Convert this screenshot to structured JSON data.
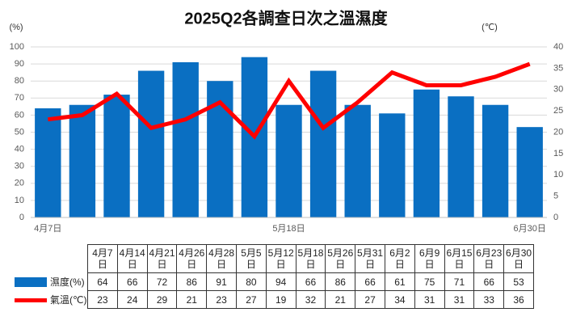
{
  "chart_data": {
    "type": "combo",
    "title": "2025Q2各調查日次之溫濕度",
    "y_label": "(%)",
    "y2_label": "(℃)",
    "categories": [
      "4月7日",
      "4月14日",
      "4月21日",
      "4月26日",
      "4月28日",
      "5月5日",
      "5月12日",
      "5月18日",
      "5月26日",
      "5月31日",
      "6月2日",
      "6月9日",
      "6月15日",
      "6月23日",
      "6月30日"
    ],
    "xticklabels": [
      "4月7日",
      null,
      null,
      null,
      null,
      null,
      null,
      "5月18日",
      null,
      null,
      null,
      null,
      null,
      null,
      "6月30日"
    ],
    "series": [
      {
        "name": "濕度(%)",
        "type": "bar",
        "color": "#0a6fc2",
        "values": [
          64,
          66,
          72,
          86,
          91,
          80,
          94,
          66,
          86,
          66,
          61,
          75,
          71,
          66,
          53
        ]
      },
      {
        "name": "氣溫(℃)",
        "type": "line",
        "axis": "y2",
        "color": "#ff0000",
        "values": [
          23,
          24,
          29,
          21,
          23,
          27,
          19,
          32,
          21,
          27,
          34,
          31,
          31,
          33,
          36
        ]
      }
    ],
    "ylim": [
      0,
      100
    ],
    "yticks": [
      0,
      10,
      20,
      30,
      40,
      50,
      60,
      70,
      80,
      90,
      100
    ],
    "y2lim": [
      0,
      40
    ],
    "y2ticks": [
      0,
      5,
      10,
      15,
      20,
      25,
      30,
      35,
      40
    ],
    "grid": true
  }
}
